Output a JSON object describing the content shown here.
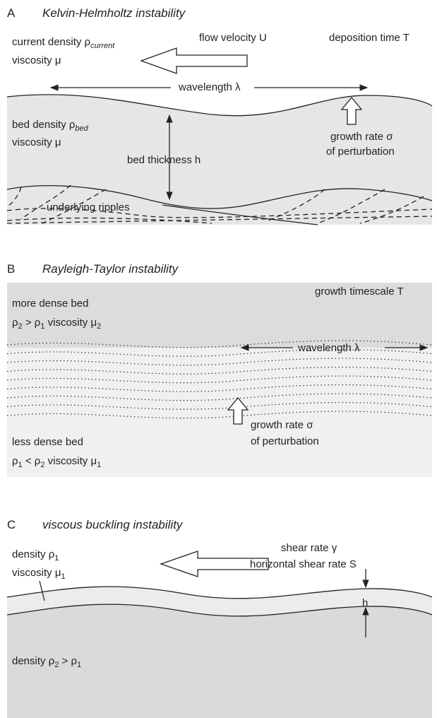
{
  "panels": [
    {
      "label": "A",
      "title": "Kelvin-Helmholtz instability",
      "texts": [
        [
          "current density ρ",
          "current"
        ],
        [
          "viscosity μ"
        ],
        [
          "flow velocity U"
        ],
        [
          "deposition time T"
        ],
        [
          "wavelength λ"
        ],
        [
          "bed density ρ",
          "bed"
        ],
        [
          "viscosity μ"
        ],
        [
          "bed thickness h"
        ],
        [
          "growth rate σ"
        ],
        [
          "of perturbation"
        ],
        [
          "underlying ripples"
        ]
      ]
    },
    {
      "label": "B",
      "title": "Rayleigh-Taylor instability",
      "texts": [
        [
          "more dense bed"
        ],
        [
          "ρ",
          "2",
          " > ρ",
          "1",
          "   viscosity μ",
          "2"
        ],
        [
          "growth timescale T"
        ],
        [
          "wavelength λ"
        ],
        [
          "growth rate σ"
        ],
        [
          "of perturbation"
        ],
        [
          "less dense bed"
        ],
        [
          "ρ",
          "1",
          " < ρ",
          "2",
          "   viscosity μ",
          "1"
        ]
      ]
    },
    {
      "label": "C",
      "title": "viscous buckling instability",
      "texts": [
        [
          "density ρ",
          "1"
        ],
        [
          "viscosity μ",
          "1"
        ],
        [
          "shear rate γ"
        ],
        [
          "horizontal shear rate S"
        ],
        [
          "h"
        ],
        [
          "density ρ",
          "2",
          " > ρ",
          "1"
        ]
      ]
    }
  ]
}
